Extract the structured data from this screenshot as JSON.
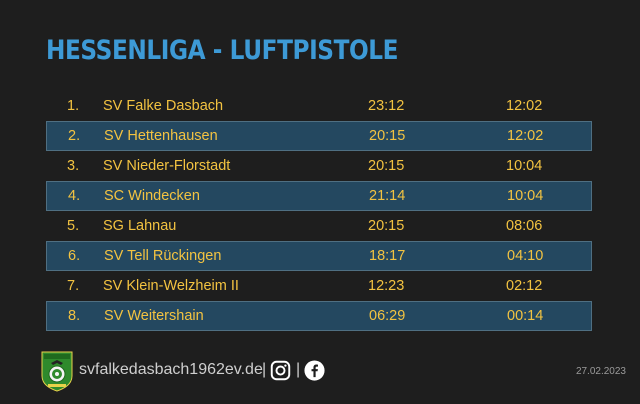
{
  "title": "HESSENLIGA - LUFTPISTOLE",
  "standings": [
    {
      "rank": "1.",
      "club": "SV Falke Dasbach",
      "points": "23:12",
      "rings": "12:02"
    },
    {
      "rank": "2.",
      "club": "SV Hettenhausen",
      "points": "20:15",
      "rings": "12:02"
    },
    {
      "rank": "3.",
      "club": "SV Nieder-Florstadt",
      "points": "20:15",
      "rings": "10:04"
    },
    {
      "rank": "4.",
      "club": "SC Windecken",
      "points": "21:14",
      "rings": "10:04"
    },
    {
      "rank": "5.",
      "club": "SG Lahnau",
      "points": "20:15",
      "rings": "08:06"
    },
    {
      "rank": "6.",
      "club": "SV Tell Rückingen",
      "points": "18:17",
      "rings": "04:10"
    },
    {
      "rank": "7.",
      "club": "SV Klein-Welzheim II",
      "points": "12:23",
      "rings": "02:12"
    },
    {
      "rank": "8.",
      "club": "SV Weitershain",
      "points": "06:29",
      "rings": "00:14"
    }
  ],
  "footer": {
    "url": "svfalkedasbach1962ev.de",
    "separator": "|",
    "date": "27.02.2023",
    "icons": [
      "club-logo-icon",
      "instagram-icon",
      "facebook-icon"
    ]
  },
  "colors": {
    "background": "#1e1e1e",
    "title": "#3d9ad6",
    "text": "#f3c341",
    "row_alt": "#244860",
    "row_border": "#4f6f82"
  }
}
